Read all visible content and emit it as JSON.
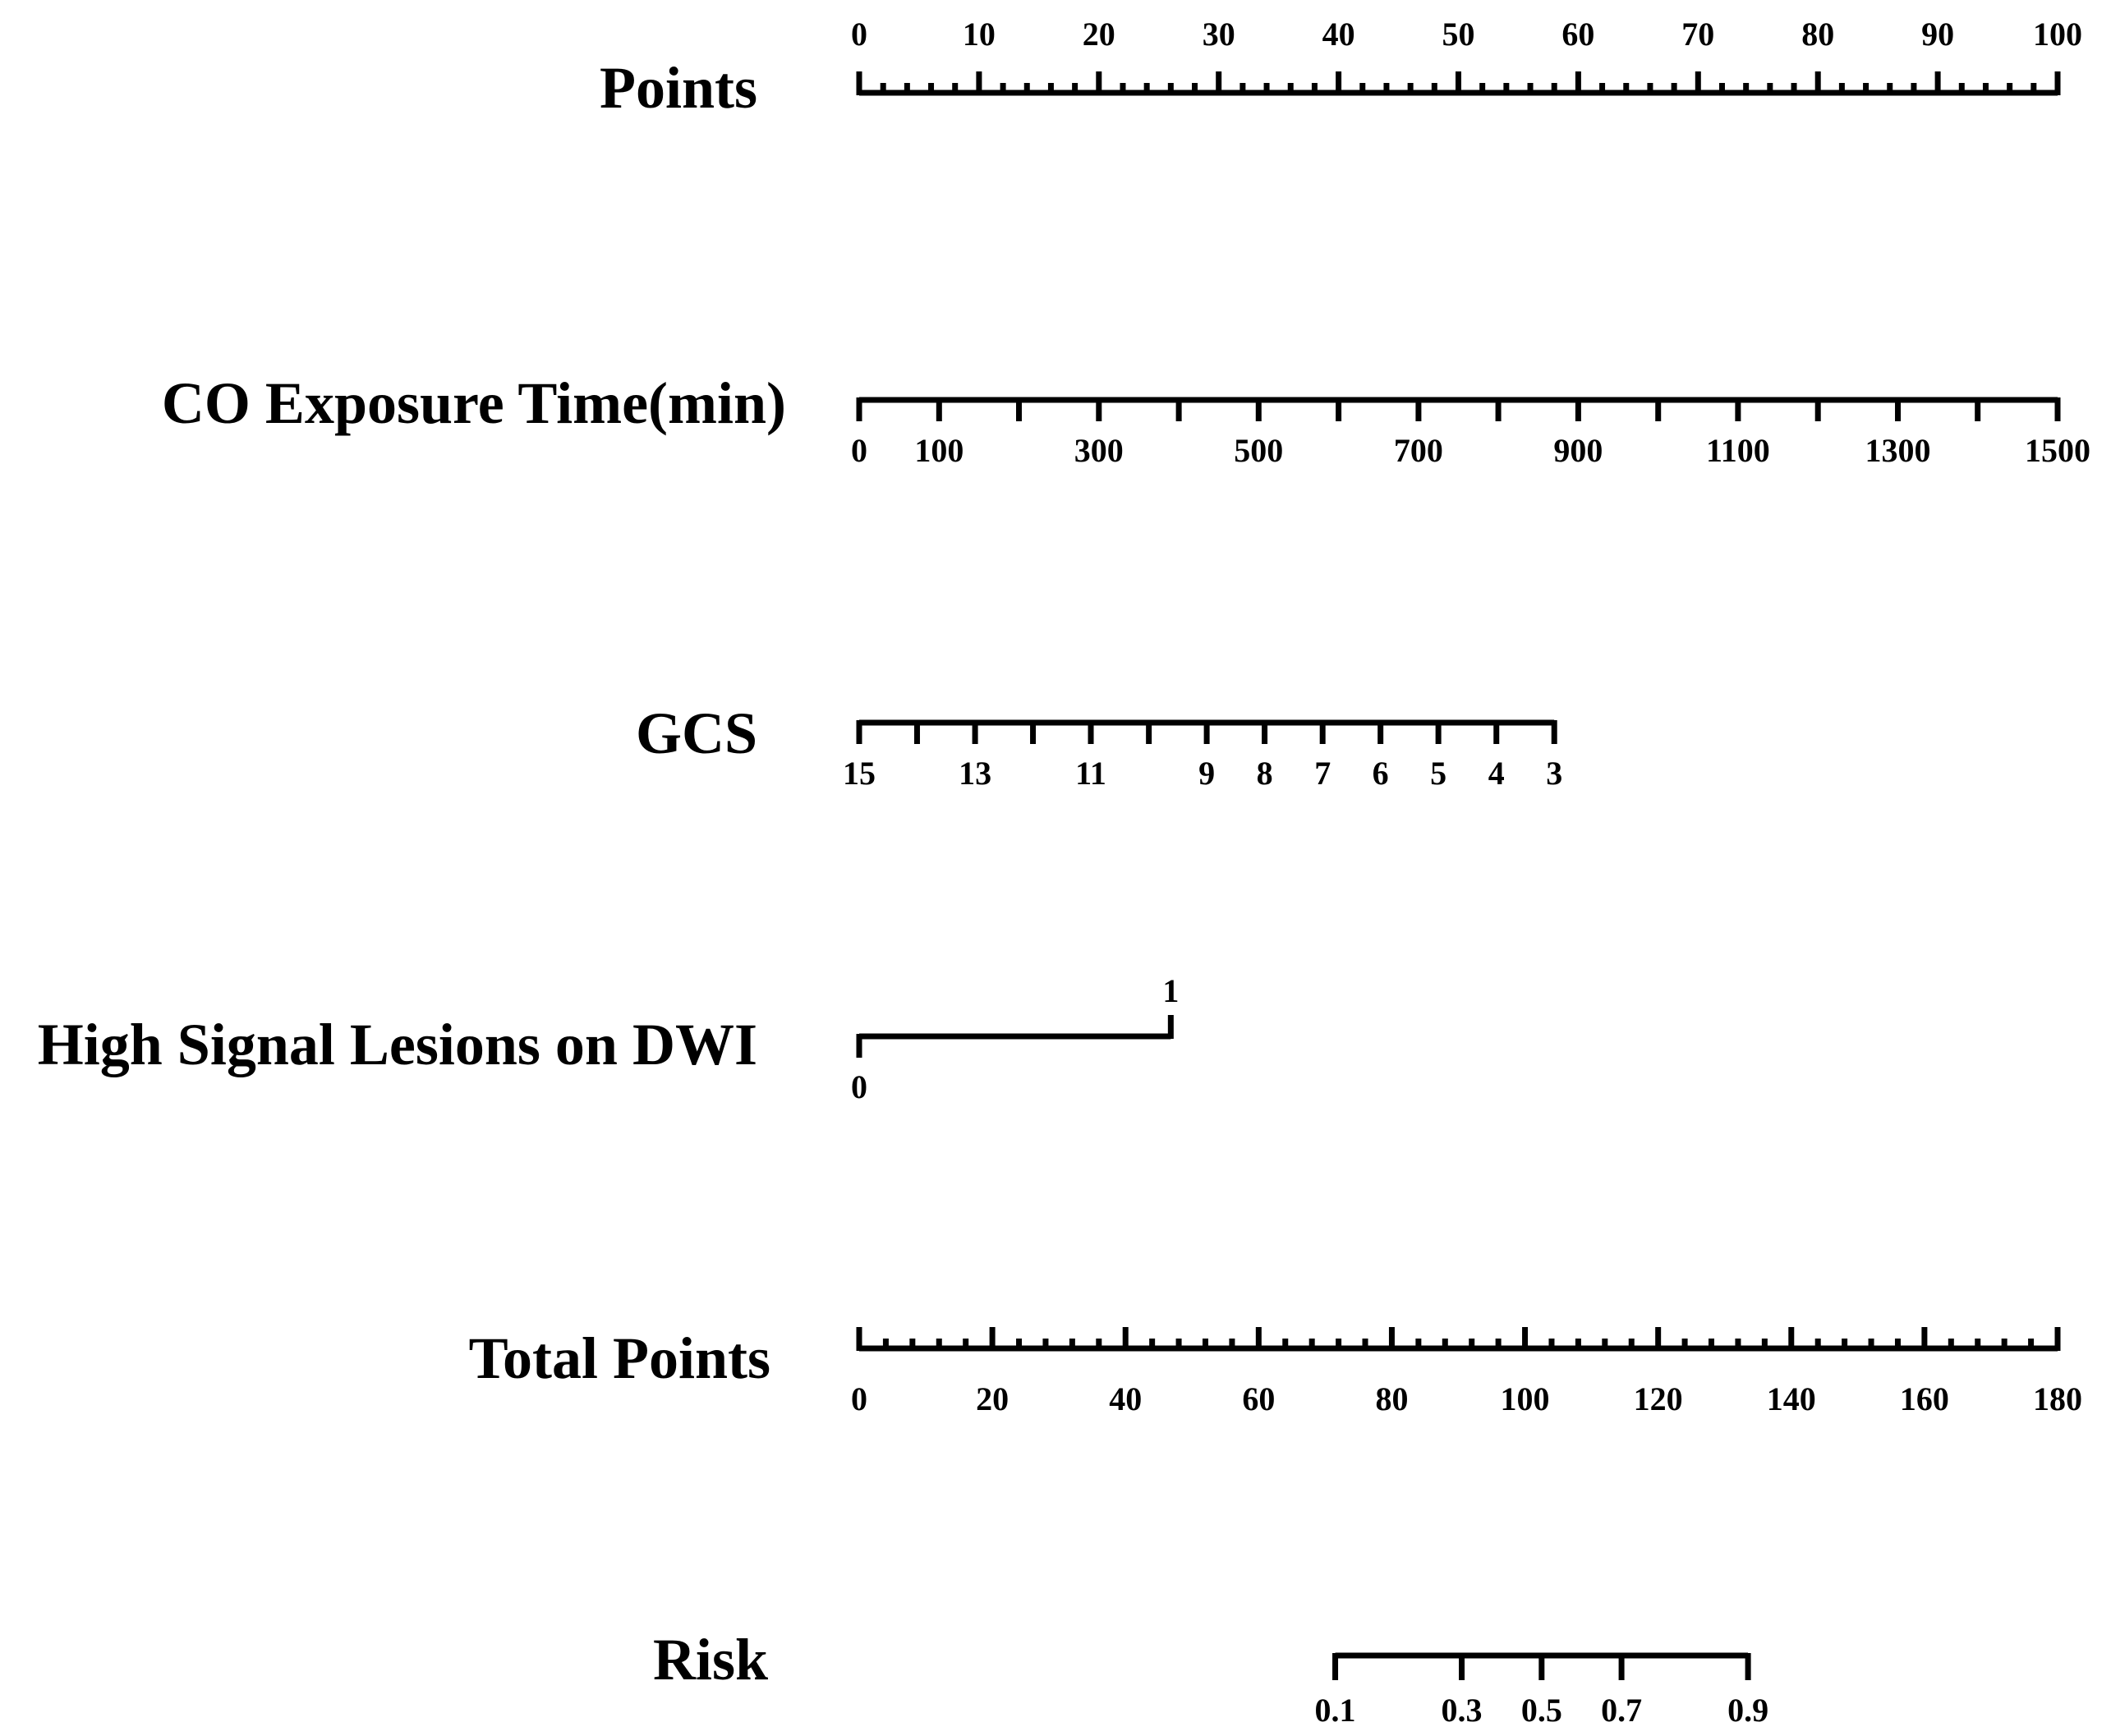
{
  "chart_data": {
    "type": "nomogram",
    "rows": [
      {
        "label": "Points",
        "kind": "points",
        "min": 0,
        "max": 100,
        "label_position": "above",
        "major_ticks": [
          0,
          10,
          20,
          30,
          40,
          50,
          60,
          70,
          80,
          90,
          100
        ],
        "tick_labels": [
          "0",
          "10",
          "20",
          "30",
          "40",
          "50",
          "60",
          "70",
          "80",
          "90",
          "100"
        ],
        "minor_step": 2
      },
      {
        "label": "CO Exposure Time(min)",
        "kind": "variable",
        "points_at_min": 0,
        "points_at_max": 100,
        "label_position": "below",
        "ticks": [
          0,
          100,
          200,
          300,
          400,
          500,
          600,
          700,
          800,
          900,
          1000,
          1100,
          1200,
          1300,
          1400,
          1500
        ],
        "tick_points": [
          0,
          6.67,
          13.33,
          20,
          26.67,
          33.33,
          40,
          46.67,
          53.33,
          60,
          66.67,
          73.33,
          80,
          86.67,
          93.33,
          100
        ],
        "tick_labels": [
          "0",
          "100",
          "",
          "300",
          "",
          "500",
          "",
          "700",
          "",
          "900",
          "",
          "1100",
          "",
          "1300",
          "",
          "1500"
        ]
      },
      {
        "label": "GCS",
        "kind": "variable",
        "points_at_min": 58,
        "points_at_max": 0,
        "label_position": "below",
        "ticks": [
          15,
          14,
          13,
          12,
          11,
          10,
          9,
          8,
          7,
          6,
          5,
          4,
          3
        ],
        "tick_points": [
          0,
          4.83,
          9.67,
          14.5,
          19.33,
          24.17,
          29,
          33.83,
          38.67,
          43.5,
          48.33,
          53.17,
          58
        ],
        "tick_labels": [
          "15",
          "",
          "13",
          "",
          "11",
          "",
          "9",
          "8",
          "7",
          "6",
          "5",
          "4",
          "3"
        ]
      },
      {
        "label": "High Signal Lesions on DWI",
        "kind": "variable",
        "label_position": "mixed",
        "ticks": [
          0,
          1
        ],
        "tick_points": [
          0,
          26
        ],
        "tick_labels": [
          "0",
          "1"
        ],
        "tick_label_sides": [
          "below",
          "above"
        ]
      },
      {
        "label": "Total Points",
        "kind": "total",
        "min": 0,
        "max": 180,
        "label_position": "below",
        "major_ticks": [
          0,
          20,
          40,
          60,
          80,
          100,
          120,
          140,
          160,
          180
        ],
        "tick_labels": [
          "0",
          "20",
          "40",
          "60",
          "80",
          "100",
          "120",
          "140",
          "160",
          "180"
        ],
        "minor_step": 4
      },
      {
        "label": "Risk",
        "kind": "risk",
        "label_position": "below",
        "ticks": [
          0.1,
          0.3,
          0.5,
          0.7,
          0.9
        ],
        "tick_total_points": [
          71.5,
          90.5,
          102.5,
          114.5,
          133.5
        ],
        "tick_labels": [
          "0.1",
          "0.3",
          "0.5",
          "0.7",
          "0.9"
        ]
      }
    ]
  }
}
